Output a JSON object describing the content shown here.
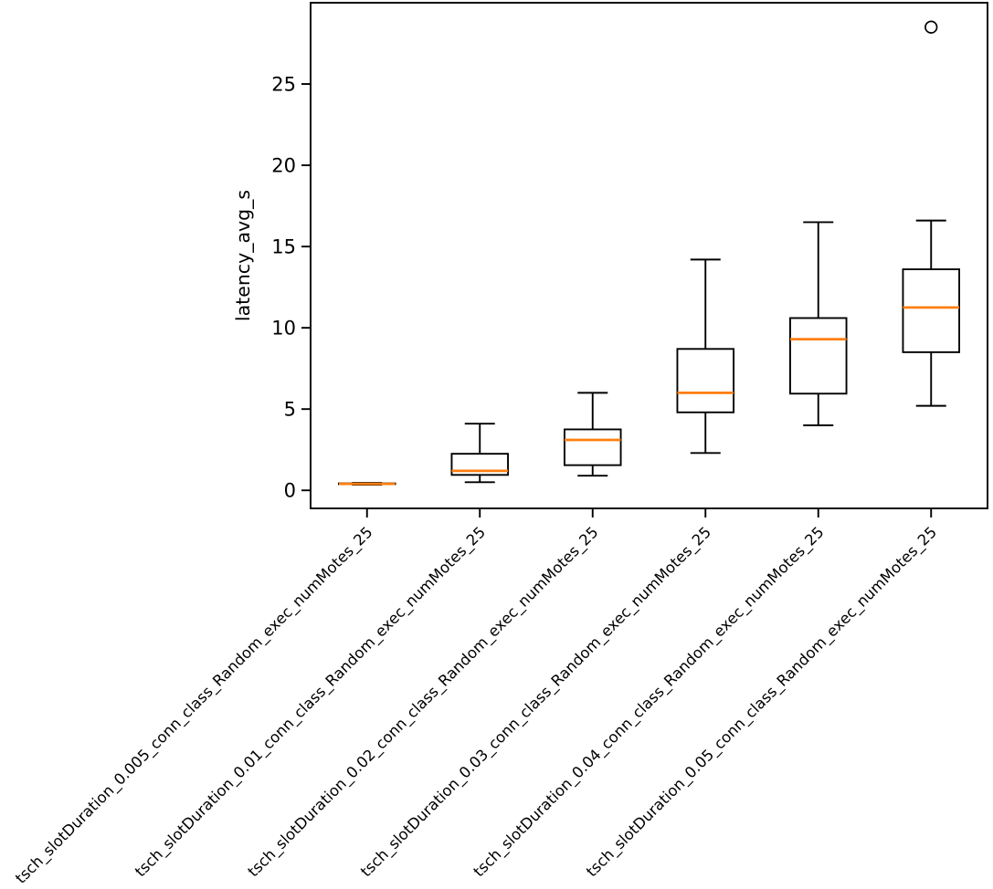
{
  "figure": {
    "background": "#ffffff"
  },
  "chart_data": {
    "type": "boxplot",
    "title": "",
    "xlabel": "",
    "ylabel": "latency_avg_s",
    "ylim": [
      -1.11,
      30.0
    ],
    "yticks": [
      0,
      5,
      10,
      15,
      20,
      25
    ],
    "grid": false,
    "legend": false,
    "categories": [
      "tsch_slotDuration_0.005_conn_class_Random_exec_numMotes_25",
      "tsch_slotDuration_0.01_conn_class_Random_exec_numMotes_25",
      "tsch_slotDuration_0.02_conn_class_Random_exec_numMotes_25",
      "tsch_slotDuration_0.03_conn_class_Random_exec_numMotes_25",
      "tsch_slotDuration_0.04_conn_class_Random_exec_numMotes_25",
      "tsch_slotDuration_0.05_conn_class_Random_exec_numMotes_25"
    ],
    "stats": [
      {
        "whislo": 0.35,
        "q1": 0.38,
        "med": 0.4,
        "q3": 0.43,
        "whishi": 0.46,
        "fliers": []
      },
      {
        "whislo": 0.5,
        "q1": 0.95,
        "med": 1.2,
        "q3": 2.25,
        "whishi": 4.1,
        "fliers": []
      },
      {
        "whislo": 0.9,
        "q1": 1.55,
        "med": 3.1,
        "q3": 3.75,
        "whishi": 6.0,
        "fliers": []
      },
      {
        "whislo": 2.3,
        "q1": 4.8,
        "med": 6.0,
        "q3": 8.7,
        "whishi": 14.2,
        "fliers": []
      },
      {
        "whislo": 4.0,
        "q1": 5.95,
        "med": 9.3,
        "q3": 10.6,
        "whishi": 16.5,
        "fliers": []
      },
      {
        "whislo": 5.2,
        "q1": 8.5,
        "med": 11.25,
        "q3": 13.6,
        "whishi": 16.6,
        "fliers": [
          28.5
        ]
      }
    ],
    "colors": {
      "median": "#ff7f0e",
      "box_line": "#000000",
      "background": "#ffffff"
    }
  }
}
